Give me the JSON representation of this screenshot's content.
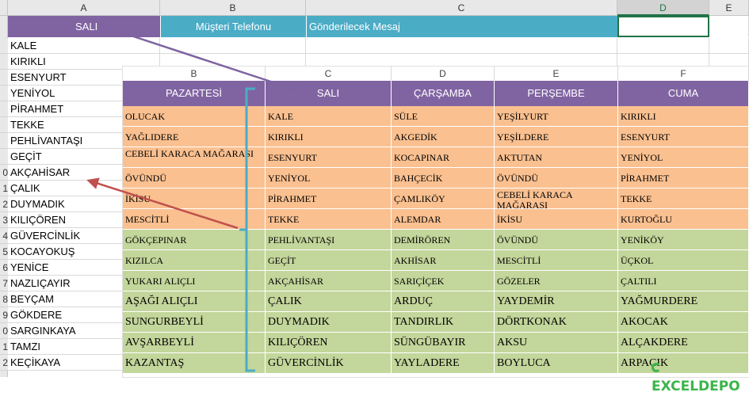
{
  "back_sheet": {
    "column_headers": [
      "A",
      "B",
      "C",
      "D",
      "E"
    ],
    "header_row": {
      "a": "SALI",
      "b": "Müşteri Telefonu",
      "c": "Gönderilecek Mesaj"
    },
    "row_numbers": [
      "",
      "",
      "",
      "",
      "",
      "",
      "",
      "",
      "",
      "0",
      "1",
      "2",
      "3",
      "4",
      "5",
      "6",
      "7",
      "8",
      "9",
      "0",
      "1",
      "2"
    ],
    "column_a": [
      "KALE",
      "KIRIKLI",
      "ESENYURT",
      "YENİYOL",
      "PİRAHMET",
      "TEKKE",
      "PEHLİVANTAŞI",
      "GEÇİT",
      "AKÇAHİSAR",
      "ÇALIK",
      "DUYMADIK",
      "KILIÇÖREN",
      "GÜVERCİNLİK",
      "KOCAYOKUŞ",
      "YENİCE",
      "NAZLIÇAYIR",
      "BEYÇAM",
      "GÖKDERE",
      "SARGINKAYA",
      "TAMZI",
      "KEÇİKAYA"
    ]
  },
  "front_table": {
    "column_letters": [
      "B",
      "C",
      "D",
      "E",
      "F"
    ],
    "headers": [
      "PAZARTESİ",
      "SALI",
      "ÇARŞAMBA",
      "PERŞEMBE",
      "CUMA"
    ],
    "rows": [
      [
        "OLUCAK",
        "KALE",
        "SÜLE",
        "YEŞİLYURT",
        "KIRIKLI"
      ],
      [
        "YAĞLIDERE",
        "KIRIKLI",
        "AKGEDİK",
        "YEŞİLDERE",
        "ESENYURT"
      ],
      [
        "CEBELİ KARACA MAĞARASI",
        "ESENYURT",
        "KOCAPINAR",
        "AKTUTAN",
        "YENİYOL"
      ],
      [
        "ÖVÜNDÜ",
        "YENİYOL",
        "BAHÇECİK",
        "ÖVÜNDÜ",
        "PİRAHMET"
      ],
      [
        "İKİSU",
        "PİRAHMET",
        "ÇAMLIKÖY",
        "CEBELİ KARACA MAĞARASI",
        "TEKKE"
      ],
      [
        "MESCİTLİ",
        "TEKKE",
        "ALEMDAR",
        "İKİSU",
        "KURTOĞLU"
      ],
      [
        "GÖKÇEPINAR",
        "PEHLİVANTAŞI",
        "DEMİRÖREN",
        "ÖVÜNDÜ",
        "YENİKÖY"
      ],
      [
        "KIZILCA",
        "GEÇİT",
        "AKHİSAR",
        "MESCİTLİ",
        "ÜÇKOL"
      ],
      [
        "YUKARI ALIÇLI",
        "AKÇAHİSAR",
        "SARIÇİÇEK",
        "GÖZELER",
        "ÇALTILI"
      ],
      [
        "AŞAĞI ALIÇLI",
        "ÇALIK",
        "ARDUÇ",
        "YAYDEMİR",
        "YAĞMURDERE"
      ],
      [
        "SUNGURBEYLİ",
        "DUYMADIK",
        "TANDIRLIK",
        "DÖRTKONAK",
        "AKOCAK"
      ],
      [
        "AVŞARBEYLİ",
        "KILIÇÖREN",
        "SÜNGÜBAYIR",
        "AKSU",
        "ALÇAKDERE"
      ],
      [
        "KAZANTAŞ",
        "GÜVERCİNLİK",
        "YAYLADERE",
        "BOYLUCA",
        "ARPACIK"
      ]
    ]
  },
  "watermark": "EXCELDEPO",
  "colors": {
    "purple_header": "#8064a2",
    "blue_header": "#4bacc6",
    "orange_row": "#fac090",
    "green_row": "#c3d69b",
    "arrow_purple": "#7f63a1",
    "arrow_red": "#c0504d",
    "bracket_blue": "#4bacc6"
  }
}
